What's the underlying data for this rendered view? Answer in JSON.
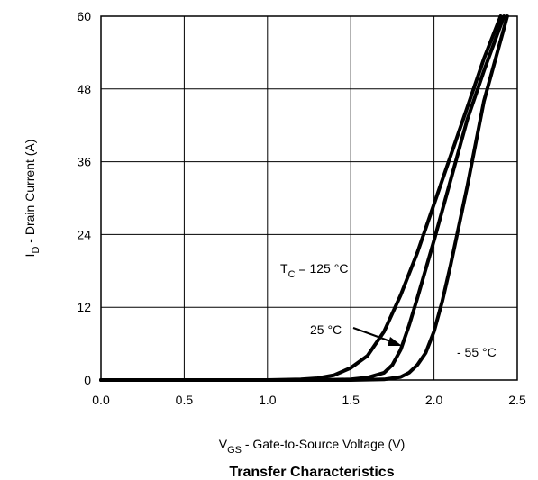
{
  "chart_data": {
    "type": "line",
    "title": "Transfer Characteristics",
    "xlabel": {
      "main": "V",
      "sub": "GS",
      "rest": " - Gate-to-Source Voltage (V)"
    },
    "ylabel": {
      "main": "I",
      "sub": "D",
      "rest": " - Drain Current (A)"
    },
    "xlim": [
      0.0,
      2.5
    ],
    "ylim": [
      0,
      60
    ],
    "xticks": [
      0.0,
      0.5,
      1.0,
      1.5,
      2.0,
      2.5
    ],
    "xtick_labels": [
      "0.0",
      "0.5",
      "1.0",
      "1.5",
      "2.0",
      "2.5"
    ],
    "yticks": [
      0,
      12,
      24,
      36,
      48,
      60
    ],
    "ytick_labels": [
      "0",
      "12",
      "24",
      "36",
      "48",
      "60"
    ],
    "grid": true,
    "series": [
      {
        "name": "TC = 125 °C",
        "x": [
          0.0,
          1.0,
          1.2,
          1.3,
          1.4,
          1.5,
          1.6,
          1.7,
          1.8,
          1.9,
          2.0,
          2.1,
          2.2,
          2.3,
          2.4
        ],
        "y": [
          0,
          0,
          0.1,
          0.3,
          0.8,
          2.0,
          4.0,
          8.0,
          14.0,
          21.0,
          29.0,
          37.0,
          45.0,
          53.0,
          60.0
        ]
      },
      {
        "name": "25 °C",
        "x": [
          0.0,
          1.3,
          1.5,
          1.6,
          1.7,
          1.75,
          1.8,
          1.85,
          1.9,
          2.0,
          2.1,
          2.2,
          2.3,
          2.42
        ],
        "y": [
          0,
          0,
          0.1,
          0.4,
          1.2,
          2.5,
          5.0,
          9.0,
          13.5,
          23.0,
          33.0,
          43.0,
          51.0,
          60.0
        ]
      },
      {
        "name": "- 55 °C",
        "x": [
          0.0,
          1.5,
          1.7,
          1.8,
          1.85,
          1.9,
          1.95,
          2.0,
          2.05,
          2.1,
          2.2,
          2.3,
          2.44
        ],
        "y": [
          0,
          0,
          0.1,
          0.5,
          1.2,
          2.5,
          4.5,
          8.0,
          13.0,
          19.0,
          32.0,
          46.0,
          60.0
        ]
      }
    ],
    "annotations": {
      "t125": {
        "main": "T",
        "sub": "C",
        "rest": " = 125 °C"
      },
      "t25": "25 °C",
      "tm55": "- 55 °C"
    }
  }
}
